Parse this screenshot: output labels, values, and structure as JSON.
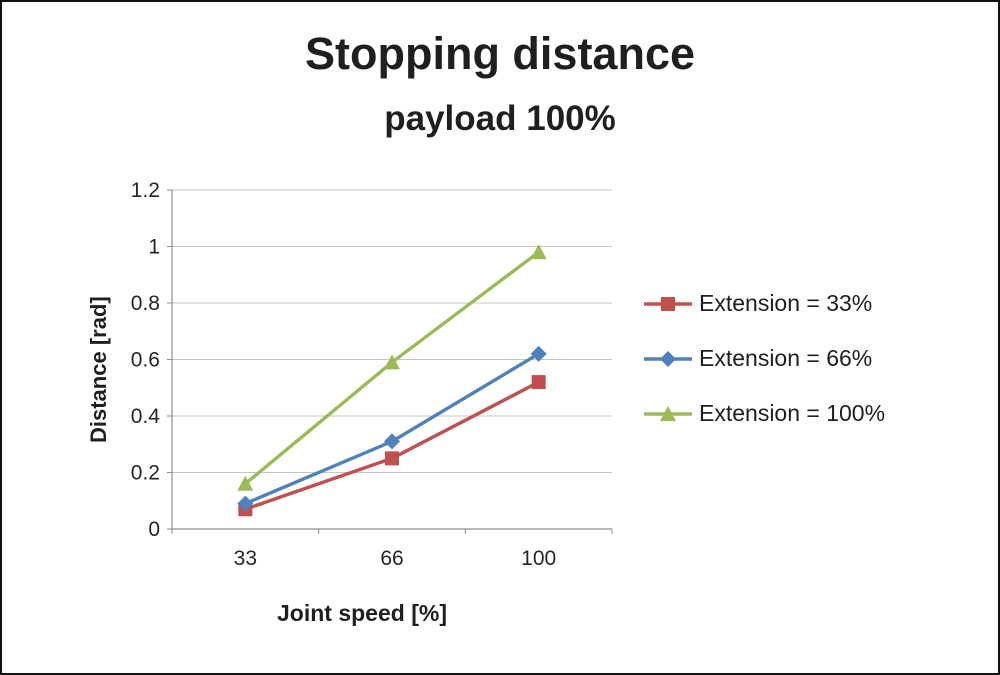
{
  "chart_data": {
    "type": "line",
    "title": "Stopping distance",
    "subtitle": "payload 100%",
    "xlabel": "Joint speed [%]",
    "ylabel": "Distance [rad]",
    "categories": [
      "33",
      "66",
      "100"
    ],
    "series": [
      {
        "name": "Extension = 33%",
        "values": [
          0.07,
          0.25,
          0.52
        ],
        "color": "#C0504D",
        "marker": "square"
      },
      {
        "name": "Extension = 66%",
        "values": [
          0.09,
          0.31,
          0.62
        ],
        "color": "#4F81BD",
        "marker": "diamond"
      },
      {
        "name": "Extension = 100%",
        "values": [
          0.16,
          0.59,
          0.98
        ],
        "color": "#9BBB59",
        "marker": "triangle"
      }
    ],
    "ylim": [
      0,
      1.2
    ],
    "y_ticks": [
      0,
      0.2,
      0.4,
      0.6,
      0.8,
      1,
      1.2
    ],
    "grid": true,
    "legend_position": "right",
    "colors": {
      "grid": "#C6C6C6",
      "axis": "#8C8C8C",
      "text": "#1f1f1f",
      "background": "#ffffff"
    }
  }
}
